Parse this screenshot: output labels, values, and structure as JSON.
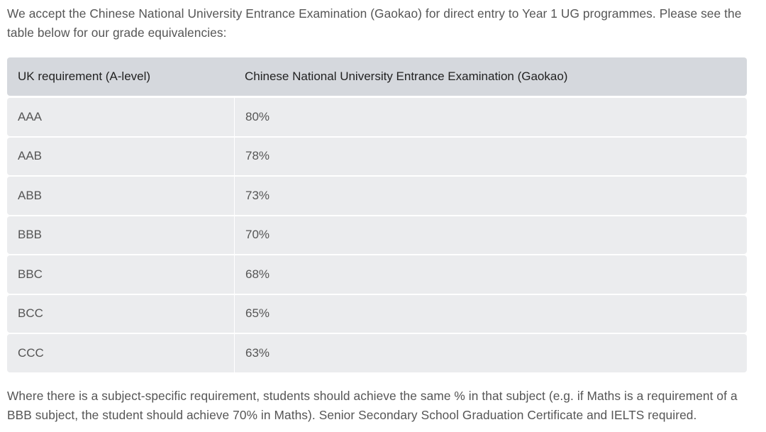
{
  "intro": "We accept the Chinese National University Entrance Examination (Gaokao) for direct entry to Year 1 UG programmes. Please see the table below for our grade equivalencies:",
  "table": {
    "header": [
      "UK requirement (A-level)",
      "Chinese National University Entrance Examination (Gaokao)"
    ],
    "rows": [
      [
        "AAA",
        "80%"
      ],
      [
        "AAB",
        "78%"
      ],
      [
        "ABB",
        "73%"
      ],
      [
        "BBB",
        "70%"
      ],
      [
        "BBC",
        "68%"
      ],
      [
        "BCC",
        "65%"
      ],
      [
        "CCC",
        "63%"
      ]
    ]
  },
  "footer": "Where there is a subject-specific requirement, students should achieve the same % in that subject (e.g. if Maths is a requirement of a BBB subject, the student should achieve 70% in Maths). Senior Secondary School Graduation Certificate and IELTS required."
}
